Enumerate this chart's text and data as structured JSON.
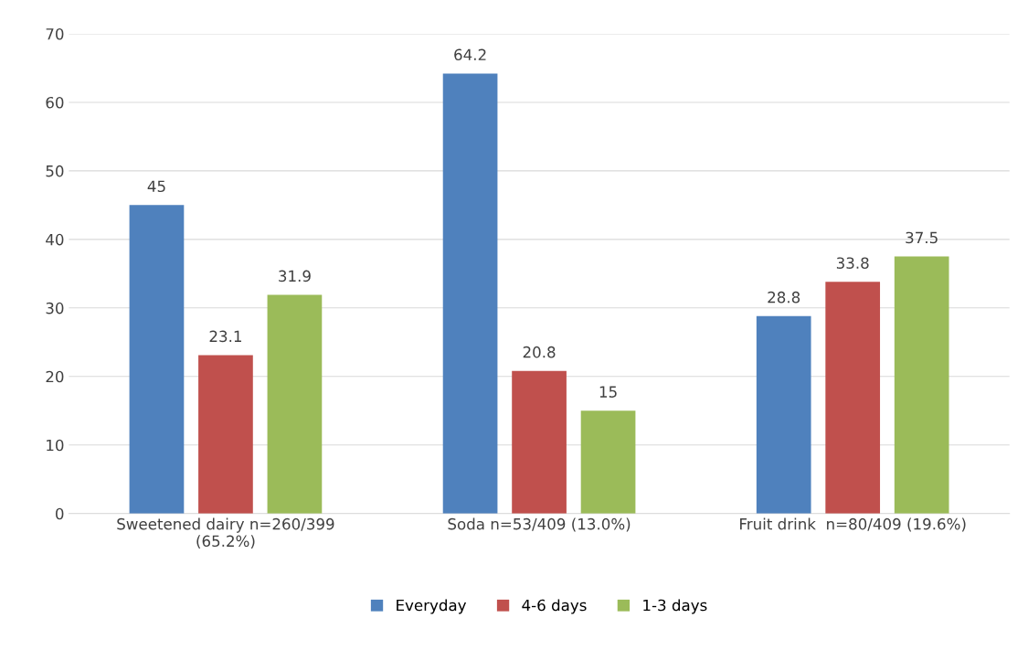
{
  "chart_data": {
    "type": "bar",
    "categories": [
      "Sweetened dairy n=260/399\n(65.2%)",
      "Soda n=53/409 (13.0%)",
      "Fruit drink  n=80/409 (19.6%)"
    ],
    "series": [
      {
        "name": "Everyday",
        "color": "#4f81bd",
        "values": [
          45,
          64.2,
          28.8
        ]
      },
      {
        "name": "4-6 days",
        "color": "#c0504d",
        "values": [
          23.1,
          20.8,
          33.8
        ]
      },
      {
        "name": "1-3 days",
        "color": "#9bbb59",
        "values": [
          31.9,
          15,
          37.5
        ]
      }
    ],
    "ylim": [
      0,
      70
    ],
    "yticks": [
      0,
      10,
      20,
      30,
      40,
      50,
      60,
      70
    ],
    "grid": "y",
    "legend": "bottom",
    "data_labels": true
  }
}
